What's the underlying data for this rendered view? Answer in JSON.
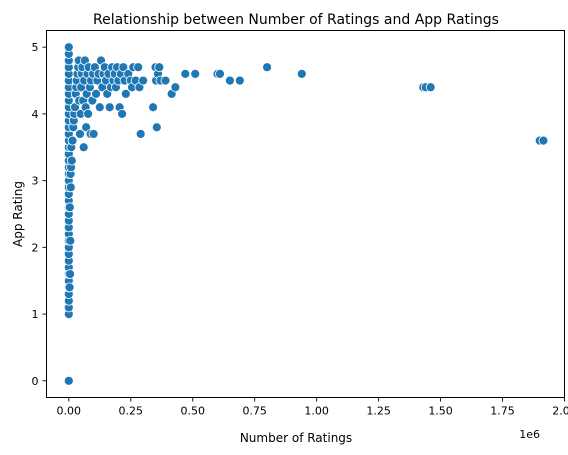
{
  "chart_data": {
    "type": "scatter",
    "title": "Relationship between Number of Ratings and App Ratings",
    "xlabel": "Number of Ratings",
    "ylabel": "App Rating",
    "x_offset_label": "1e6",
    "xlim": [
      -90000,
      2000000
    ],
    "ylim": [
      -0.25,
      5.25
    ],
    "x_ticks": [
      0,
      250000,
      500000,
      750000,
      1000000,
      1250000,
      1500000,
      1750000,
      2000000
    ],
    "x_tick_labels": [
      "0.00",
      "0.25",
      "0.50",
      "0.75",
      "1.00",
      "1.25",
      "1.50",
      "1.75",
      "2.00"
    ],
    "y_ticks": [
      0,
      1,
      2,
      3,
      4,
      5
    ],
    "y_tick_labels": [
      "0",
      "1",
      "2",
      "3",
      "4",
      "5"
    ],
    "grid": false,
    "marker_color": "#1f77b4",
    "marker_edge_color": "#ffffff",
    "series": [
      {
        "points": [
          [
            0,
            0.0
          ],
          [
            0,
            1.0
          ],
          [
            0,
            1.1
          ],
          [
            0,
            1.2
          ],
          [
            0,
            1.3
          ],
          [
            0,
            1.4
          ],
          [
            0,
            1.5
          ],
          [
            0,
            1.6
          ],
          [
            0,
            1.7
          ],
          [
            0,
            1.8
          ],
          [
            0,
            1.9
          ],
          [
            0,
            2.0
          ],
          [
            0,
            2.1
          ],
          [
            0,
            2.2
          ],
          [
            0,
            2.3
          ],
          [
            0,
            2.4
          ],
          [
            0,
            2.5
          ],
          [
            0,
            2.6
          ],
          [
            0,
            2.7
          ],
          [
            0,
            2.8
          ],
          [
            0,
            2.9
          ],
          [
            0,
            3.0
          ],
          [
            0,
            3.1
          ],
          [
            0,
            3.2
          ],
          [
            0,
            3.3
          ],
          [
            0,
            3.4
          ],
          [
            0,
            3.5
          ],
          [
            0,
            3.6
          ],
          [
            0,
            3.7
          ],
          [
            0,
            3.8
          ],
          [
            0,
            3.9
          ],
          [
            0,
            4.0
          ],
          [
            0,
            4.1
          ],
          [
            0,
            4.2
          ],
          [
            0,
            4.3
          ],
          [
            0,
            4.4
          ],
          [
            0,
            4.5
          ],
          [
            0,
            4.6
          ],
          [
            0,
            4.7
          ],
          [
            0,
            4.8
          ],
          [
            0,
            4.9
          ],
          [
            0,
            5.0
          ],
          [
            3000,
            1.4
          ],
          [
            5000,
            1.6
          ],
          [
            6000,
            2.1
          ],
          [
            4000,
            2.6
          ],
          [
            8000,
            2.9
          ],
          [
            7000,
            3.1
          ],
          [
            9000,
            3.2
          ],
          [
            10000,
            3.5
          ],
          [
            12000,
            3.3
          ],
          [
            15000,
            3.6
          ],
          [
            18000,
            3.8
          ],
          [
            20000,
            3.9
          ],
          [
            22000,
            4.0
          ],
          [
            25000,
            4.1
          ],
          [
            28000,
            4.3
          ],
          [
            30000,
            4.4
          ],
          [
            32000,
            4.5
          ],
          [
            35000,
            4.6
          ],
          [
            38000,
            4.7
          ],
          [
            40000,
            4.8
          ],
          [
            42000,
            4.2
          ],
          [
            45000,
            3.7
          ],
          [
            48000,
            4.0
          ],
          [
            50000,
            4.4
          ],
          [
            52000,
            4.6
          ],
          [
            55000,
            4.7
          ],
          [
            58000,
            4.2
          ],
          [
            60000,
            3.5
          ],
          [
            62000,
            4.5
          ],
          [
            65000,
            4.8
          ],
          [
            68000,
            4.1
          ],
          [
            70000,
            3.8
          ],
          [
            72000,
            4.3
          ],
          [
            75000,
            4.6
          ],
          [
            78000,
            4.0
          ],
          [
            80000,
            4.7
          ],
          [
            85000,
            4.4
          ],
          [
            88000,
            3.7
          ],
          [
            90000,
            4.5
          ],
          [
            95000,
            4.2
          ],
          [
            98000,
            4.6
          ],
          [
            100000,
            3.7
          ],
          [
            105000,
            4.7
          ],
          [
            110000,
            4.3
          ],
          [
            115000,
            4.5
          ],
          [
            120000,
            4.6
          ],
          [
            125000,
            4.1
          ],
          [
            130000,
            4.8
          ],
          [
            135000,
            4.4
          ],
          [
            140000,
            4.6
          ],
          [
            145000,
            4.7
          ],
          [
            150000,
            4.5
          ],
          [
            155000,
            4.3
          ],
          [
            160000,
            4.6
          ],
          [
            165000,
            4.1
          ],
          [
            170000,
            4.4
          ],
          [
            175000,
            4.7
          ],
          [
            180000,
            4.5
          ],
          [
            185000,
            4.6
          ],
          [
            190000,
            4.4
          ],
          [
            195000,
            4.7
          ],
          [
            200000,
            4.5
          ],
          [
            205000,
            4.1
          ],
          [
            210000,
            4.6
          ],
          [
            215000,
            4.0
          ],
          [
            220000,
            4.7
          ],
          [
            225000,
            4.5
          ],
          [
            230000,
            4.3
          ],
          [
            240000,
            4.6
          ],
          [
            250000,
            4.5
          ],
          [
            255000,
            4.4
          ],
          [
            260000,
            4.7
          ],
          [
            270000,
            4.5
          ],
          [
            280000,
            4.7
          ],
          [
            285000,
            4.4
          ],
          [
            290000,
            3.7
          ],
          [
            300000,
            4.5
          ],
          [
            340000,
            4.1
          ],
          [
            350000,
            4.7
          ],
          [
            352000,
            4.5
          ],
          [
            355000,
            3.8
          ],
          [
            360000,
            4.6
          ],
          [
            365000,
            4.7
          ],
          [
            370000,
            4.5
          ],
          [
            390000,
            4.5
          ],
          [
            415000,
            4.3
          ],
          [
            430000,
            4.4
          ],
          [
            470000,
            4.6
          ],
          [
            510000,
            4.6
          ],
          [
            600000,
            4.6
          ],
          [
            610000,
            4.6
          ],
          [
            650000,
            4.5
          ],
          [
            690000,
            4.5
          ],
          [
            800000,
            4.7
          ],
          [
            940000,
            4.6
          ],
          [
            1430000,
            4.4
          ],
          [
            1440000,
            4.4
          ],
          [
            1460000,
            4.4
          ],
          [
            1900000,
            3.6
          ],
          [
            1915000,
            3.6
          ]
        ]
      }
    ]
  }
}
